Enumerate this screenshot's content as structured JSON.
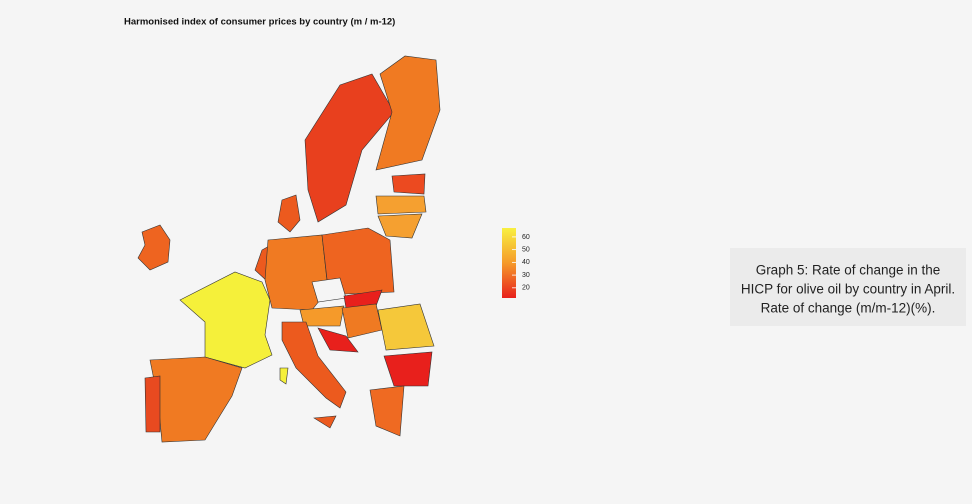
{
  "title": "Harmonised index of consumer prices by country (m / m-12)",
  "legend": {
    "range": [
      12,
      67
    ],
    "ticks": [
      60,
      50,
      40,
      30,
      20
    ]
  },
  "caption": [
    "Graph 5: Rate of change in the",
    "HICP for olive oil by country in April.",
    "Rate of change (m/m-12)(%)."
  ]
}
